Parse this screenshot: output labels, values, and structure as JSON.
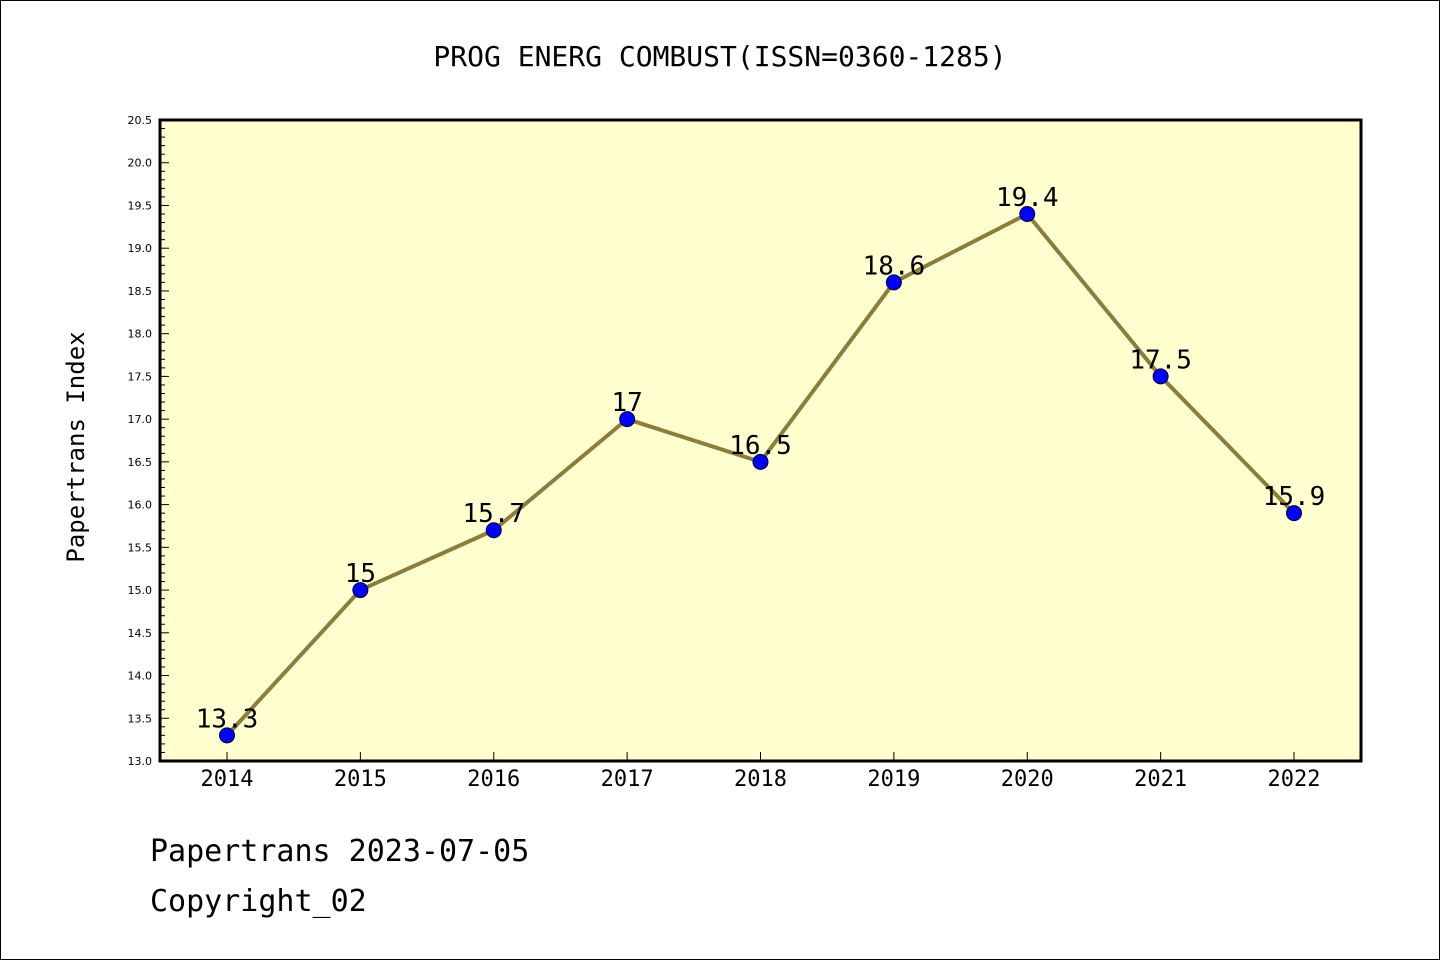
{
  "chart_data": {
    "type": "line",
    "title": "PROG ENERG COMBUST(ISSN=0360-1285)",
    "ylabel": "Papertrans Index",
    "xlabel": "",
    "categories": [
      "2014",
      "2015",
      "2016",
      "2017",
      "2018",
      "2019",
      "2020",
      "2021",
      "2022"
    ],
    "values": [
      13.3,
      15,
      15.7,
      17,
      16.5,
      18.6,
      19.4,
      17.5,
      15.9
    ],
    "data_labels": [
      "13.3",
      "15",
      "15.7",
      "17",
      "16.5",
      "18.6",
      "19.4",
      "17.5",
      "15.9"
    ],
    "ylim": [
      13.0,
      20.5
    ],
    "yticks": [
      "13.0",
      "13.5",
      "14.0",
      "14.5",
      "15.0",
      "15.5",
      "16.0",
      "16.5",
      "17.0",
      "17.5",
      "18.0",
      "18.5",
      "19.0",
      "19.5",
      "20.0",
      "20.5"
    ],
    "grid": false,
    "plot_background": "#FFFFD0",
    "line_color": "#8B7D3A",
    "marker_color": "#0000FF"
  },
  "footer": {
    "line1": "Papertrans 2023-07-05",
    "line2": "Copyright_02"
  }
}
